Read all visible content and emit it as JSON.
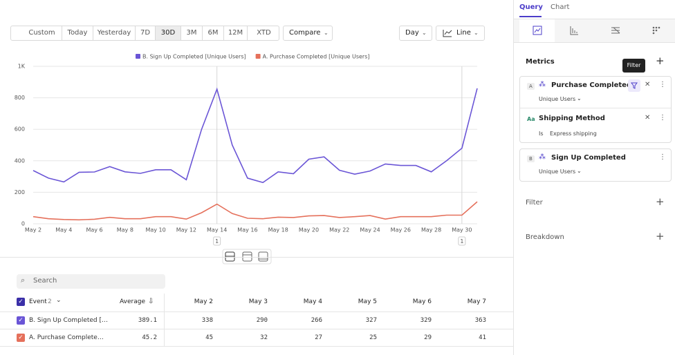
{
  "toolbar": {
    "date_ranges": [
      "Custom",
      "Today",
      "Yesterday",
      "7D",
      "30D",
      "3M",
      "6M",
      "12M",
      "XTD"
    ],
    "selected_range": "30D",
    "compare": "Compare",
    "interval": "Day",
    "chart_type": "Line"
  },
  "chart_data": {
    "type": "line",
    "categories": [
      "May 2",
      null,
      "May 4",
      null,
      "May 6",
      null,
      "May 8",
      null,
      "May 10",
      null,
      "May 12",
      null,
      "May 14",
      null,
      "May 16",
      null,
      "May 18",
      null,
      "May 20",
      null,
      "May 22",
      null,
      "May 24",
      null,
      "May 26",
      null,
      "May 28",
      null,
      "May 30",
      null
    ],
    "series": [
      {
        "name": "B. Sign Up Completed [Unique Users]",
        "color": "#6a55d6",
        "values": [
          338,
          290,
          266,
          327,
          329,
          363,
          330,
          320,
          343,
          343,
          280,
          600,
          855,
          500,
          290,
          262,
          330,
          318,
          410,
          425,
          340,
          315,
          335,
          380,
          370,
          370,
          330,
          400,
          480,
          860
        ]
      },
      {
        "name": "A. Purchase Completed [Unique Users]",
        "color": "#e5705b",
        "values": [
          45,
          32,
          27,
          25,
          29,
          41,
          32,
          32,
          45,
          45,
          30,
          70,
          125,
          65,
          35,
          32,
          42,
          40,
          50,
          52,
          40,
          45,
          52,
          30,
          45,
          45,
          45,
          55,
          55,
          140
        ]
      }
    ],
    "ylim": [
      0,
      1000
    ],
    "yticks": [
      0,
      200,
      400,
      600,
      800,
      {
        "value": 1000,
        "label": "1K"
      }
    ],
    "grid": true,
    "annotations": [
      {
        "x": "May 14",
        "count": 1
      },
      {
        "x": "May 30",
        "count": 1
      }
    ]
  },
  "table": {
    "search": "Search",
    "event_header": "Event",
    "event_count": 2,
    "average_header": "Average",
    "date_headers": [
      "May 2",
      "May 3",
      "May 4",
      "May 5",
      "May 6",
      "May 7"
    ],
    "rows": [
      {
        "name": "B. Sign Up Completed […",
        "color": "#6a55d6",
        "average": 389.1,
        "values": [
          338,
          290,
          266,
          327,
          329,
          363
        ]
      },
      {
        "name": "A. Purchase Complete…",
        "color": "#e5705b",
        "average": 45.2,
        "values": [
          45,
          32,
          27,
          25,
          29,
          41
        ]
      }
    ]
  },
  "panel": {
    "tabs": [
      "Query",
      "Chart"
    ],
    "metrics_title": "Metrics",
    "tooltip": "Filter",
    "metric_a": {
      "badge": "A",
      "name": "Purchase Completed",
      "measure": "Unique Users"
    },
    "filter": {
      "badge": "Aa",
      "property": "Shipping Method",
      "operator": "Is",
      "value": "Express shipping"
    },
    "metric_b": {
      "badge": "B",
      "name": "Sign Up Completed",
      "measure": "Unique Users"
    },
    "filter_section": "Filter",
    "breakdown_section": "Breakdown"
  }
}
